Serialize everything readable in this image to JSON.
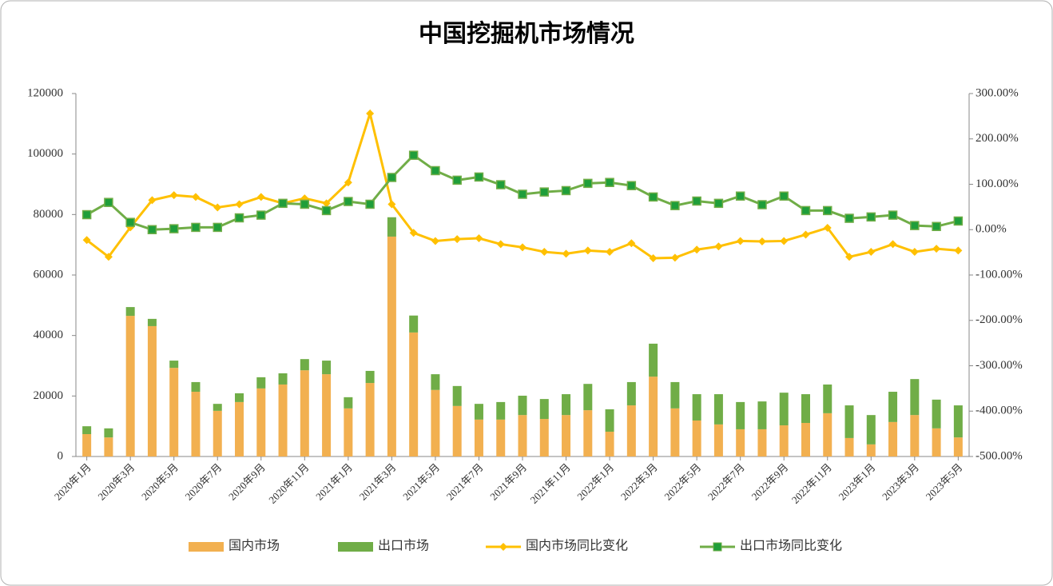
{
  "chart_data": {
    "type": "bar",
    "stacked": true,
    "title": "中国挖掘机市场情况",
    "categories": [
      "2020年1月",
      null,
      "2020年3月",
      null,
      "2020年5月",
      null,
      "2020年7月",
      null,
      "2020年9月",
      null,
      "2020年11月",
      null,
      "2021年1月",
      null,
      "2021年3月",
      null,
      "2021年5月",
      null,
      "2021年7月",
      null,
      "2021年9月",
      null,
      "2021年11月",
      null,
      "2022年1月",
      null,
      "2022年3月",
      null,
      "2022年5月",
      null,
      "2022年7月",
      null,
      "2022年9月",
      null,
      "2022年11月",
      null,
      "2023年1月",
      null,
      "2023年3月",
      null,
      "2023年5月"
    ],
    "series": [
      {
        "name": "国内市场",
        "type": "bar",
        "color": "#f2b050",
        "values": [
          7400,
          6300,
          46500,
          43100,
          29300,
          21400,
          15100,
          18000,
          22500,
          23800,
          28500,
          27200,
          15900,
          24300,
          72700,
          41000,
          22000,
          16700,
          12200,
          12200,
          13700,
          12400,
          13700,
          15300,
          8200,
          16900,
          26400,
          15900,
          11900,
          10600,
          9000,
          9000,
          10300,
          11100,
          14300,
          6100,
          4000,
          11400,
          13700,
          9300,
          6300
        ]
      },
      {
        "name": "出口市场",
        "type": "bar",
        "color": "#70ad47",
        "values": [
          2600,
          3000,
          2900,
          2400,
          2400,
          3200,
          2300,
          2900,
          3700,
          3700,
          3700,
          4500,
          3700,
          4000,
          6400,
          5600,
          5200,
          6600,
          5200,
          5800,
          6400,
          6600,
          6900,
          8700,
          7400,
          7700,
          10900,
          8700,
          8700,
          10000,
          9000,
          9200,
          10800,
          9500,
          9500,
          10800,
          9700,
          10000,
          11900,
          9500,
          10600
        ]
      },
      {
        "name": "国内市场同比变化",
        "type": "line",
        "axis": "y2",
        "color": "#ffc000",
        "marker": "diamond",
        "values": [
          -23,
          -60,
          5,
          65,
          76,
          72,
          49,
          56,
          72,
          58,
          69,
          58,
          104,
          256,
          56,
          -7,
          -25,
          -21,
          -19,
          -32,
          -39,
          -49,
          -53,
          -46,
          -49,
          -30,
          -63,
          -62,
          -44,
          -37,
          -25,
          -26,
          -25,
          -11,
          4,
          -60,
          -49,
          -32,
          -49,
          -42,
          -46
        ]
      },
      {
        "name": "出口市场同比变化",
        "type": "line",
        "axis": "y2",
        "color": "#70ad47",
        "marker": "square",
        "values": [
          33,
          60,
          16,
          0,
          2,
          5,
          5,
          26,
          32,
          58,
          56,
          42,
          62,
          56,
          115,
          164,
          130,
          109,
          116,
          99,
          78,
          83,
          86,
          102,
          104,
          97,
          72,
          53,
          63,
          58,
          74,
          55,
          74,
          42,
          42,
          25,
          28,
          32,
          9,
          7,
          19
        ]
      }
    ],
    "ylim": [
      0,
      120000
    ],
    "yticks": [
      0,
      20000,
      40000,
      60000,
      80000,
      100000,
      120000
    ],
    "y2lim": [
      -500,
      300
    ],
    "y2ticks": [
      {
        "value": -500,
        "label": "-500.00%"
      },
      {
        "value": -400,
        "label": "-400.00%"
      },
      {
        "value": -300,
        "label": "-300.00%"
      },
      {
        "value": -200,
        "label": "-200.00%"
      },
      {
        "value": -100,
        "label": "-100.00%"
      },
      {
        "value": 0,
        "label": "0.00%"
      },
      {
        "value": 100,
        "label": "100.00%"
      },
      {
        "value": 200,
        "label": "200.00%"
      },
      {
        "value": 300,
        "label": "300.00%"
      }
    ],
    "legend": "bottom"
  }
}
